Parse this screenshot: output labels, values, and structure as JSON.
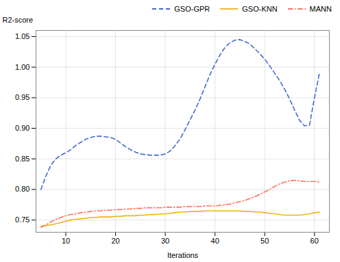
{
  "chart_data": {
    "type": "line",
    "xlabel": "Iterations",
    "ylabel": "R2-score",
    "xlim": [
      4,
      63
    ],
    "ylim": [
      0.73,
      1.06
    ],
    "xticks": [
      10,
      20,
      30,
      40,
      50,
      60
    ],
    "yticks": [
      0.75,
      {
        "value": 0.8,
        "label": "0.80"
      },
      0.85,
      {
        "value": 0.9,
        "label": "0.90"
      },
      0.95,
      {
        "value": 1,
        "label": "1.00"
      },
      1.05
    ],
    "grid": true,
    "legend": "upper right",
    "x": [
      5,
      6,
      7,
      8,
      9,
      10,
      11,
      12,
      13,
      14,
      15,
      16,
      17,
      18,
      19,
      20,
      21,
      22,
      23,
      24,
      25,
      26,
      27,
      28,
      29,
      30,
      31,
      32,
      33,
      34,
      35,
      36,
      37,
      38,
      39,
      40,
      41,
      42,
      43,
      44,
      45,
      46,
      47,
      48,
      49,
      50,
      51,
      52,
      53,
      54,
      55,
      56,
      57,
      58,
      59,
      60,
      61
    ],
    "series": [
      {
        "name": "GSO-GPR",
        "line_style": "dashed",
        "values": [
          0.8,
          0.822,
          0.84,
          0.85,
          0.856,
          0.86,
          0.865,
          0.872,
          0.877,
          0.882,
          0.885,
          0.887,
          0.887,
          0.886,
          0.885,
          0.882,
          0.876,
          0.87,
          0.865,
          0.861,
          0.858,
          0.857,
          0.856,
          0.856,
          0.856,
          0.858,
          0.863,
          0.872,
          0.883,
          0.898,
          0.914,
          0.93,
          0.948,
          0.968,
          0.988,
          1.005,
          1.02,
          1.032,
          1.04,
          1.044,
          1.045,
          1.042,
          1.038,
          1.03,
          1.022,
          1.013,
          1.002,
          0.99,
          0.978,
          0.964,
          0.948,
          0.93,
          0.913,
          0.904,
          0.905,
          0.95,
          0.99
        ]
      },
      {
        "name": "GSO-KNN",
        "line_style": "solid",
        "values": [
          0.74,
          0.741,
          0.742,
          0.744,
          0.746,
          0.748,
          0.75,
          0.751,
          0.752,
          0.753,
          0.754,
          0.754,
          0.755,
          0.755,
          0.755,
          0.756,
          0.756,
          0.757,
          0.757,
          0.757,
          0.758,
          0.758,
          0.759,
          0.759,
          0.76,
          0.76,
          0.761,
          0.762,
          0.763,
          0.763,
          0.764,
          0.764,
          0.764,
          0.765,
          0.765,
          0.765,
          0.765,
          0.765,
          0.765,
          0.765,
          0.765,
          0.764,
          0.764,
          0.763,
          0.763,
          0.762,
          0.761,
          0.76,
          0.759,
          0.758,
          0.758,
          0.758,
          0.758,
          0.759,
          0.76,
          0.762,
          0.763
        ]
      },
      {
        "name": "MANN",
        "line_style": "dashdot",
        "values": [
          0.738,
          0.742,
          0.747,
          0.751,
          0.754,
          0.757,
          0.759,
          0.76,
          0.762,
          0.763,
          0.764,
          0.765,
          0.765,
          0.766,
          0.766,
          0.767,
          0.767,
          0.768,
          0.768,
          0.769,
          0.769,
          0.77,
          0.77,
          0.77,
          0.77,
          0.771,
          0.771,
          0.771,
          0.771,
          0.772,
          0.772,
          0.772,
          0.772,
          0.773,
          0.773,
          0.773,
          0.774,
          0.775,
          0.776,
          0.778,
          0.78,
          0.782,
          0.785,
          0.788,
          0.792,
          0.796,
          0.8,
          0.805,
          0.809,
          0.812,
          0.814,
          0.815,
          0.814,
          0.813,
          0.813,
          0.813,
          0.812
        ]
      }
    ]
  }
}
